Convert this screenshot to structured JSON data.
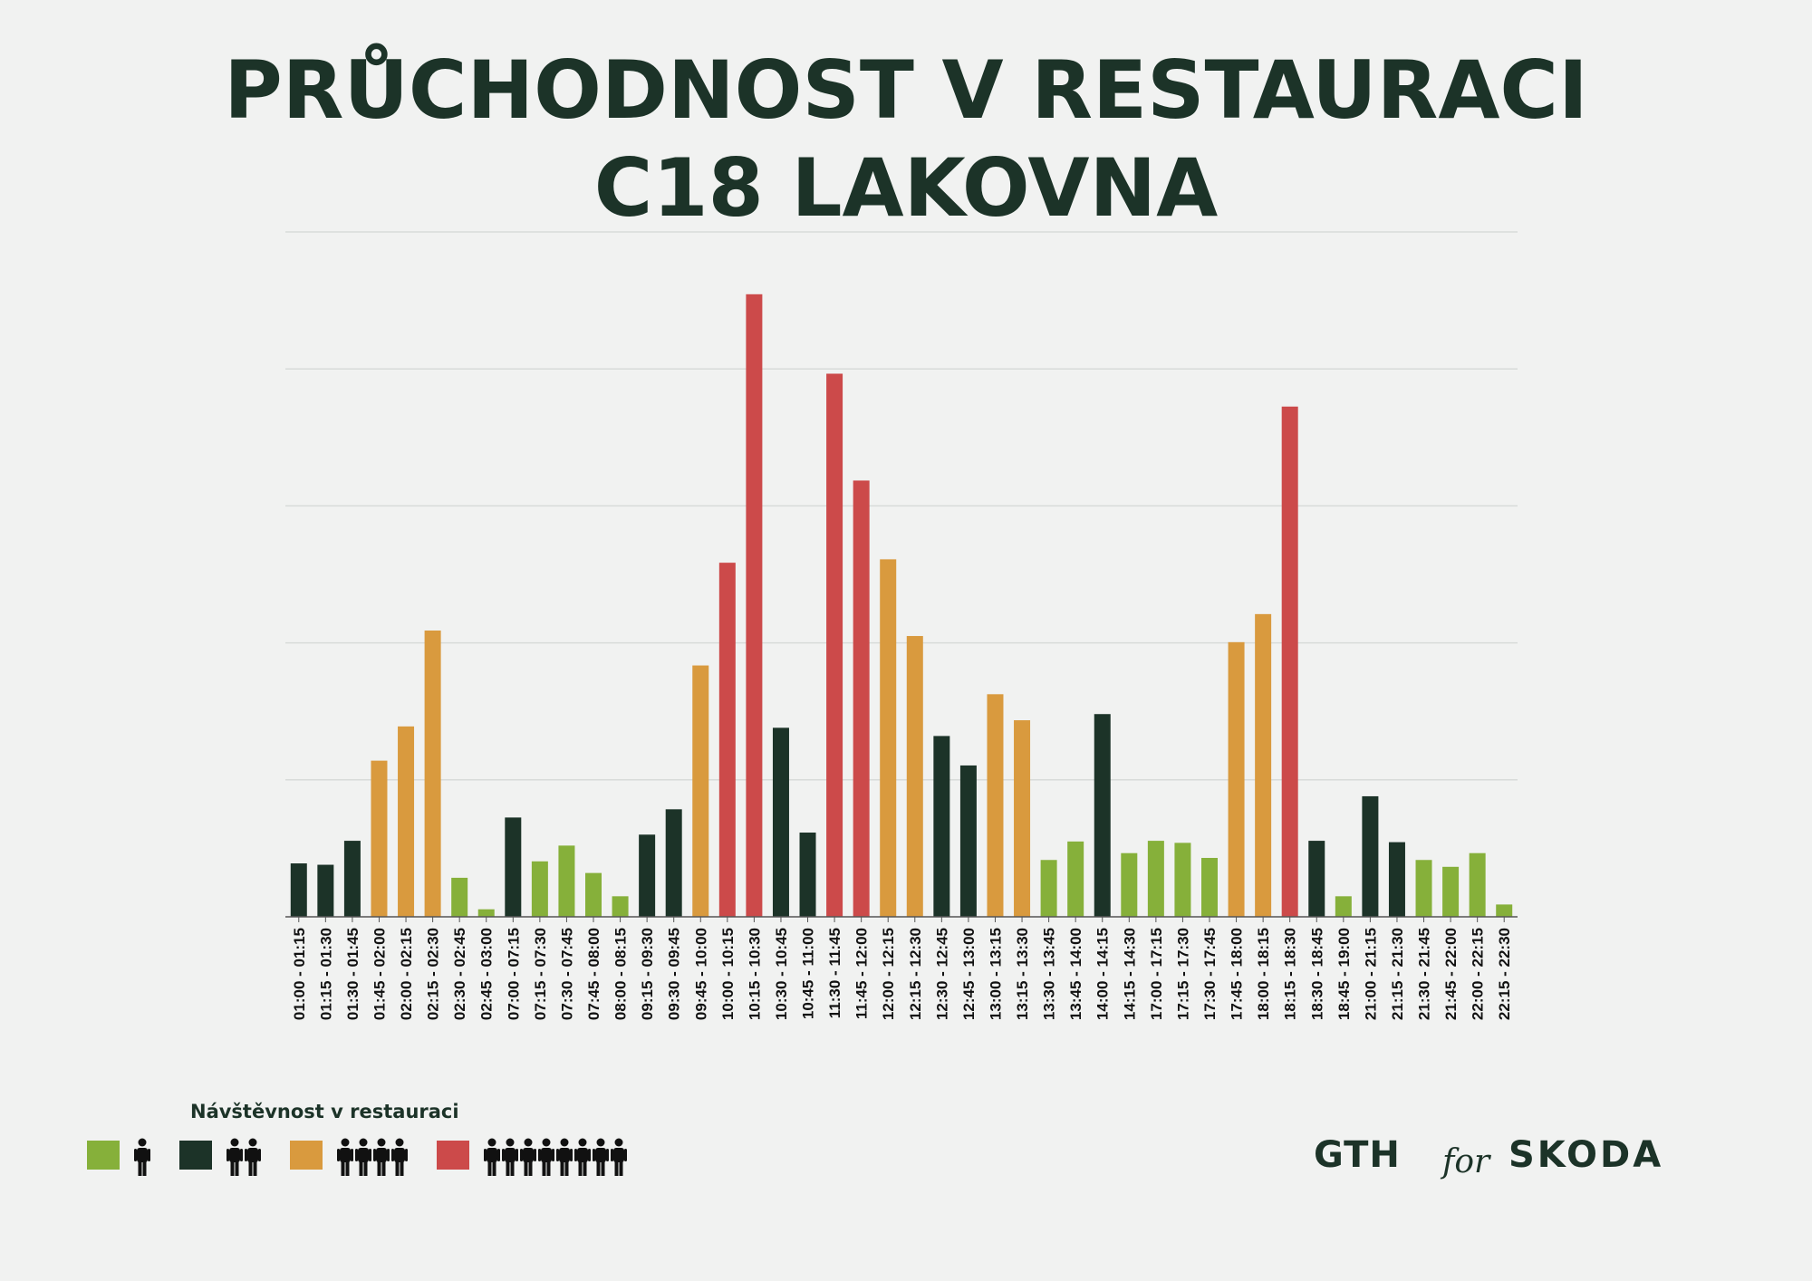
{
  "title_lines": [
    "PRŮCHODNOST V RESTAURACI",
    "C18 LAKOVNA"
  ],
  "legend": {
    "title": "Návštěvnost v restauraci",
    "items": [
      {
        "level": "green",
        "color": "#86b03a",
        "icon": "person-icon",
        "people": 1
      },
      {
        "level": "dark",
        "color": "#1c3328",
        "icon": "person-icon",
        "people": 2
      },
      {
        "level": "orange",
        "color": "#d99a3e",
        "icon": "person-icon",
        "people": 4
      },
      {
        "level": "red",
        "color": "#cc4a4a",
        "icon": "person-icon",
        "people": 8
      }
    ]
  },
  "logos": {
    "left": "GTH",
    "connector": "for",
    "right": "SKODA"
  },
  "colors": {
    "green": "#86b03a",
    "dark": "#1c3328",
    "orange": "#d99a3e",
    "red": "#cc4a4a",
    "grid": "#d8dbd9",
    "axis": "#555555",
    "title": "#1c3328"
  },
  "chart_data": {
    "type": "bar",
    "title": "PRŮCHODNOST V RESTAURACI C18 LAKOVNA",
    "xlabel": "",
    "ylabel": "",
    "ylim": [
      0,
      100
    ],
    "grid": true,
    "gridlines": [
      0,
      20,
      40,
      60,
      80,
      100
    ],
    "y_tick_labels_shown": false,
    "legend_position": "bottom-left",
    "categories": [
      "01:00 - 01:15",
      "01:15 - 01:30",
      "01:30 - 01:45",
      "01:45 - 02:00",
      "02:00 - 02:15",
      "02:15 - 02:30",
      "02:30 - 02:45",
      "02:45 - 03:00",
      "07:00 - 07:15",
      "07:15 - 07:30",
      "07:30 - 07:45",
      "07:45 - 08:00",
      "08:00 - 08:15",
      "09:15 - 09:30",
      "09:30 - 09:45",
      "09:45 - 10:00",
      "10:00 - 10:15",
      "10:15 - 10:30",
      "10:30 - 10:45",
      "10:45 - 11:00",
      "11:30 - 11:45",
      "11:45 - 12:00",
      "12:00 - 12:15",
      "12:15 - 12:30",
      "12:30 - 12:45",
      "12:45 - 13:00",
      "13:00 - 13:15",
      "13:15 - 13:30",
      "13:30 - 13:45",
      "13:45 - 14:00",
      "14:00 - 14:15",
      "14:15 - 14:30",
      "17:00 - 17:15",
      "17:15 - 17:30",
      "17:30 - 17:45",
      "17:45 - 18:00",
      "18:00 - 18:15",
      "18:15 - 18:30",
      "18:30 - 18:45",
      "18:45 - 19:00",
      "21:00 - 21:15",
      "21:15 - 21:30",
      "21:30 - 21:45",
      "21:45 - 22:00",
      "22:00 - 22:15",
      "22:15 - 22:30"
    ],
    "values": [
      7.8,
      7.6,
      11.1,
      22.8,
      27.8,
      41.8,
      5.7,
      1.1,
      14.5,
      8.1,
      10.4,
      6.4,
      3.0,
      12.0,
      15.7,
      36.7,
      51.7,
      90.9,
      27.6,
      12.3,
      79.3,
      63.7,
      52.2,
      41.0,
      26.4,
      22.1,
      32.5,
      28.7,
      8.3,
      11.0,
      29.6,
      9.3,
      11.1,
      10.8,
      8.6,
      40.1,
      44.2,
      74.5,
      11.1,
      3.0,
      17.6,
      10.9,
      8.3,
      7.3,
      9.3,
      1.8
    ],
    "levels": [
      "dark",
      "dark",
      "dark",
      "orange",
      "orange",
      "orange",
      "green",
      "green",
      "dark",
      "green",
      "green",
      "green",
      "green",
      "dark",
      "dark",
      "orange",
      "red",
      "red",
      "dark",
      "dark",
      "red",
      "red",
      "orange",
      "orange",
      "dark",
      "dark",
      "orange",
      "orange",
      "green",
      "green",
      "dark",
      "green",
      "green",
      "green",
      "green",
      "orange",
      "orange",
      "red",
      "dark",
      "green",
      "dark",
      "dark",
      "green",
      "green",
      "green",
      "green"
    ]
  }
}
